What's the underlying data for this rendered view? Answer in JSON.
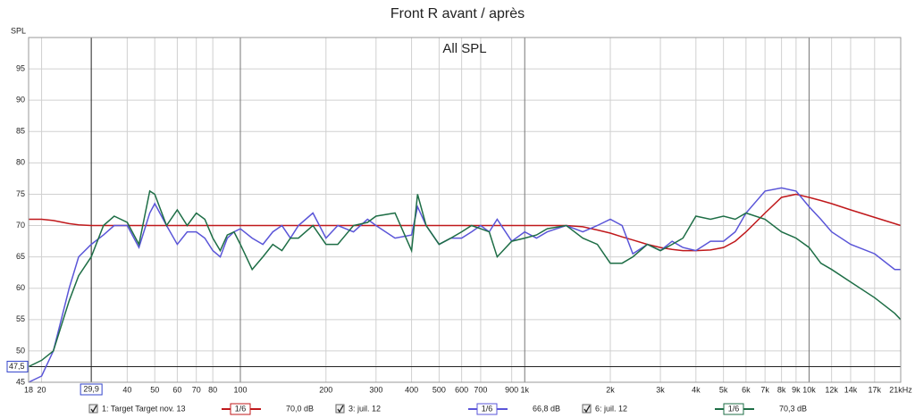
{
  "chart_data": {
    "type": "line",
    "title": "Front R avant / après",
    "plot_label": "All SPL",
    "y_label": "SPL",
    "log_x": true,
    "grid": true,
    "xlim": [
      18,
      21000
    ],
    "ylim": [
      45,
      100
    ],
    "yticks": [
      45,
      50,
      55,
      60,
      65,
      70,
      75,
      80,
      85,
      90,
      95
    ],
    "xticks": [
      18,
      20,
      40,
      50,
      60,
      70,
      80,
      100,
      200,
      300,
      400,
      500,
      600,
      700,
      900,
      {
        "value": 1000,
        "label": "1k"
      },
      {
        "value": 2000,
        "label": "2k"
      },
      {
        "value": 3000,
        "label": "3k"
      },
      {
        "value": 4000,
        "label": "4k"
      },
      {
        "value": 5000,
        "label": "5k"
      },
      {
        "value": 6000,
        "label": "6k"
      },
      {
        "value": 7000,
        "label": "7k"
      },
      {
        "value": 8000,
        "label": "8k"
      },
      {
        "value": 9000,
        "label": "9k"
      },
      {
        "value": 10000,
        "label": "10k"
      },
      {
        "value": 12000,
        "label": "12k"
      },
      {
        "value": 14000,
        "label": "14k"
      },
      {
        "value": 17000,
        "label": "17k"
      },
      {
        "value": 21000,
        "label": "21kHz"
      }
    ],
    "cursor": {
      "x": {
        "value": 29.9,
        "label": "29,9"
      },
      "y": {
        "value": 47.5,
        "label": "47,5"
      }
    },
    "x": [
      18,
      20,
      22,
      25,
      27,
      29.9,
      33,
      36,
      40,
      44,
      48,
      50,
      55,
      60,
      65,
      70,
      75,
      80,
      85,
      90,
      95,
      100,
      110,
      120,
      130,
      140,
      150,
      160,
      180,
      200,
      220,
      250,
      280,
      300,
      350,
      400,
      420,
      450,
      500,
      550,
      600,
      650,
      700,
      750,
      800,
      900,
      1000,
      1100,
      1200,
      1400,
      1600,
      1800,
      2000,
      2200,
      2400,
      2700,
      3000,
      3300,
      3600,
      4000,
      4500,
      5000,
      5500,
      6000,
      7000,
      8000,
      9000,
      10000,
      11000,
      12000,
      14000,
      17000,
      20000,
      21000
    ],
    "series": [
      {
        "name": "1: Target Target nov. 13",
        "color": "#c0181b",
        "smoothing": "1/6",
        "level": "70,0 dB",
        "values": [
          71,
          71,
          70.8,
          70.3,
          70.1,
          70,
          70,
          70,
          70,
          70,
          70,
          70,
          70,
          70,
          70,
          70,
          70,
          70,
          70,
          70,
          70,
          70,
          70,
          70,
          70,
          70,
          70,
          70,
          70,
          70,
          70,
          70,
          70,
          70,
          70,
          70,
          70,
          70,
          70,
          70,
          70,
          70,
          70,
          70,
          70,
          70,
          70,
          70,
          70,
          70,
          69.8,
          69.3,
          68.8,
          68.2,
          67.7,
          67,
          66.5,
          66.2,
          66,
          66,
          66.1,
          66.5,
          67.5,
          69,
          72,
          74.5,
          75,
          74.5,
          74,
          73.5,
          72.5,
          71.3,
          70.3,
          70
        ]
      },
      {
        "name": "3: juil. 12",
        "color": "#5a55d8",
        "smoothing": "1/6",
        "level": "66,8 dB",
        "values": [
          45,
          46,
          50,
          60,
          65,
          67,
          68.5,
          70,
          70,
          66.5,
          72,
          73.5,
          70,
          67,
          69,
          69,
          68,
          66,
          65,
          68,
          69,
          69.5,
          68,
          67,
          69,
          70,
          68,
          70,
          72,
          68,
          70,
          69,
          71,
          70,
          68,
          68.5,
          73,
          70,
          67,
          68,
          68,
          69,
          70,
          69,
          71,
          67.5,
          69,
          68,
          69,
          70,
          69,
          70,
          71,
          70,
          65.5,
          67,
          66,
          67.5,
          66.5,
          66,
          67.5,
          67.5,
          69,
          72,
          75.5,
          76,
          75.5,
          73,
          71,
          69,
          67,
          65.5,
          63,
          63
        ]
      },
      {
        "name": "6: juil. 12",
        "color": "#1e6e46",
        "smoothing": "1/6",
        "level": "70,3 dB",
        "values": [
          47.5,
          48.5,
          50,
          58,
          62,
          65,
          70,
          71.5,
          70.5,
          67,
          75.5,
          75,
          70,
          72.5,
          70,
          72,
          71,
          68,
          66,
          68.5,
          69,
          67,
          63,
          65,
          67,
          66,
          68,
          68,
          70,
          67,
          67,
          70,
          70.5,
          71.5,
          72,
          66,
          75,
          70,
          67,
          68,
          69,
          70,
          69.5,
          69,
          65,
          67.5,
          68,
          68.5,
          69.5,
          70,
          68,
          67,
          64,
          64,
          65,
          67,
          66,
          67,
          68,
          71.5,
          71,
          71.5,
          71,
          72,
          71,
          69,
          68,
          66.5,
          64,
          63,
          61,
          58.5,
          56,
          55
        ]
      }
    ]
  }
}
